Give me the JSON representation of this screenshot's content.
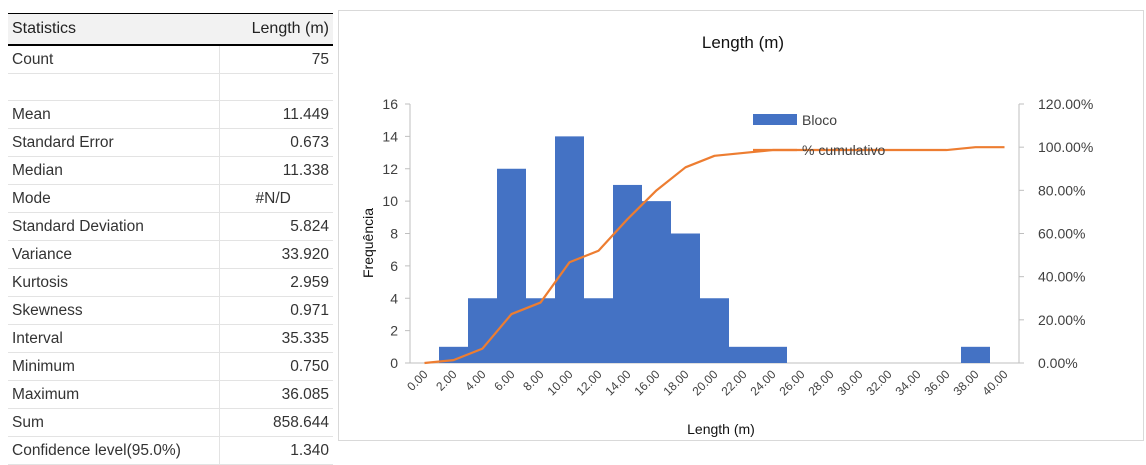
{
  "stats_table": {
    "header_stat": "Statistics",
    "header_value": "Length (m)",
    "rows": [
      {
        "label": "Count",
        "value": "75"
      },
      {
        "label": "Mean",
        "value": "11.449"
      },
      {
        "label": "Standard Error",
        "value": "0.673"
      },
      {
        "label": "Median",
        "value": "11.338"
      },
      {
        "label": "Mode",
        "value": "#N/D"
      },
      {
        "label": "Standard Deviation",
        "value": "5.824"
      },
      {
        "label": "Variance",
        "value": "33.920"
      },
      {
        "label": "Kurtosis",
        "value": "2.959"
      },
      {
        "label": "Skewness",
        "value": "0.971"
      },
      {
        "label": "Interval",
        "value": "35.335"
      },
      {
        "label": "Minimum",
        "value": "0.750"
      },
      {
        "label": "Maximum",
        "value": "36.085"
      },
      {
        "label": "Sum",
        "value": "858.644"
      },
      {
        "label": "Confidence level(95.0%)",
        "value": "1.340"
      }
    ]
  },
  "chart_data": {
    "type": "bar",
    "title": "Length (m)",
    "xlabel": "Length (m)",
    "ylabel": "Frequência",
    "categories": [
      "0.00",
      "2.00",
      "4.00",
      "6.00",
      "8.00",
      "10.00",
      "12.00",
      "14.00",
      "16.00",
      "18.00",
      "20.00",
      "22.00",
      "24.00",
      "26.00",
      "28.00",
      "30.00",
      "32.00",
      "34.00",
      "36.00",
      "38.00",
      "40.00"
    ],
    "series": [
      {
        "name": "Bloco",
        "axis": "primary",
        "kind": "bar",
        "color": "#4472C4",
        "values": [
          0,
          1,
          4,
          12,
          4,
          14,
          4,
          11,
          10,
          8,
          4,
          1,
          1,
          0,
          0,
          0,
          0,
          0,
          0,
          1,
          0
        ]
      },
      {
        "name": "% cumulativo",
        "axis": "secondary",
        "kind": "line",
        "color": "#ED7D31",
        "values": [
          0.0,
          1.33,
          6.67,
          22.67,
          28.0,
          46.67,
          52.0,
          66.67,
          80.0,
          90.67,
          96.0,
          97.33,
          98.67,
          98.67,
          98.67,
          98.67,
          98.67,
          98.67,
          98.67,
          100.0,
          100.0
        ]
      }
    ],
    "ylim": [
      0,
      16
    ],
    "yticks": [
      0,
      2,
      4,
      6,
      8,
      10,
      12,
      14,
      16
    ],
    "y2lim": [
      0,
      120
    ],
    "y2ticks": [
      "0.00%",
      "20.00%",
      "40.00%",
      "60.00%",
      "80.00%",
      "100.00%",
      "120.00%"
    ],
    "legend_position": "top-right",
    "grid": false
  }
}
